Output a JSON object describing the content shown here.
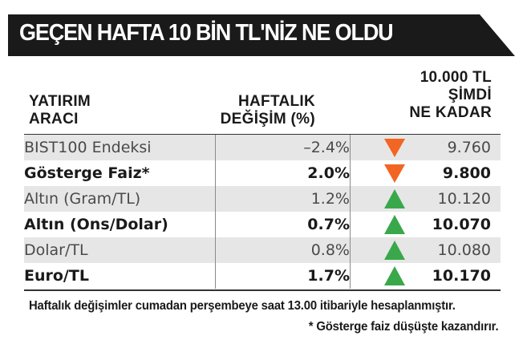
{
  "title": "GEÇEN HAFTA 10 BİN TL'NİZ NE OLDU",
  "columns": {
    "instrument": [
      "YATIRIM",
      "ARACI"
    ],
    "weekly_change": [
      "HAFTALIK",
      "DEĞİŞİM (%)"
    ],
    "current_value": [
      "10.000 TL",
      "ŞİMDİ",
      "NE KADAR"
    ]
  },
  "colors": {
    "banner": "#1a1a1a",
    "down_arrow": "#f26522",
    "up_arrow": "#39a84a",
    "row_shade": "#e6e6e6"
  },
  "rows": [
    {
      "name": "BIST100 Endeksi",
      "change": "–2.4%",
      "value": "9.760",
      "direction": "down",
      "style": "regular",
      "shaded": true
    },
    {
      "name": "Gösterge Faiz*",
      "change": "2.0%",
      "value": "9.800",
      "direction": "down",
      "style": "bold",
      "shaded": false
    },
    {
      "name": "Altın (Gram/TL)",
      "change": "1.2%",
      "value": "10.120",
      "direction": "up",
      "style": "regular",
      "shaded": true
    },
    {
      "name": "Altın (Ons/Dolar)",
      "change": "0.7%",
      "value": "10.070",
      "direction": "up",
      "style": "bold",
      "shaded": false
    },
    {
      "name": "Dolar/TL",
      "change": "0.8%",
      "value": "10.080",
      "direction": "up",
      "style": "regular",
      "shaded": true
    },
    {
      "name": "Euro/TL",
      "change": "1.7%",
      "value": "10.170",
      "direction": "up",
      "style": "bold",
      "shaded": false
    }
  ],
  "footnotes": {
    "calc": "Haftalık değişimler cumadan perşembeye saat 13.00 itibariyle hesaplanmıştır.",
    "asterisk": "* Gösterge faiz düşüşte kazandırır."
  }
}
